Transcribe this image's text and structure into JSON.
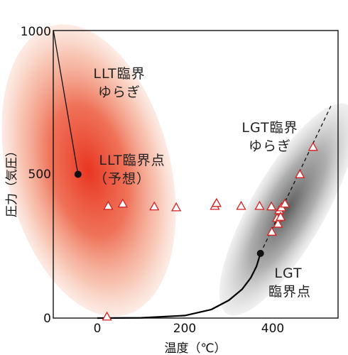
{
  "chart_data": {
    "type": "scatter",
    "title": "",
    "xlabel": "温度（℃）",
    "ylabel": "圧力（気圧）",
    "xlim": [
      -100,
      550
    ],
    "ylim": [
      0,
      1000
    ],
    "x_ticks": [
      0,
      200,
      400
    ],
    "x_tick_labels": [
      "0",
      "200",
      "400"
    ],
    "y_ticks": [
      0,
      500,
      1000
    ],
    "y_tick_labels": [
      "0",
      "500",
      "1000"
    ],
    "grid": false,
    "legend": "none",
    "colors": {
      "llt_fluctuation": "#e8311c",
      "lgt_fluctuation": "#6f6f6f",
      "triangle_marker": "#d42020",
      "curve": "#000000"
    },
    "triangles": [
      {
        "x": 22,
        "y": 5
      },
      {
        "x": 25,
        "y": 390
      },
      {
        "x": 58,
        "y": 398
      },
      {
        "x": 130,
        "y": 388
      },
      {
        "x": 180,
        "y": 385
      },
      {
        "x": 268,
        "y": 390
      },
      {
        "x": 272,
        "y": 400
      },
      {
        "x": 328,
        "y": 390
      },
      {
        "x": 370,
        "y": 390
      },
      {
        "x": 397,
        "y": 388
      },
      {
        "x": 410,
        "y": 348
      },
      {
        "x": 412,
        "y": 328
      },
      {
        "x": 415,
        "y": 375
      },
      {
        "x": 418,
        "y": 352
      },
      {
        "x": 420,
        "y": 385
      },
      {
        "x": 428,
        "y": 398
      },
      {
        "x": 398,
        "y": 300
      },
      {
        "x": 462,
        "y": 500
      },
      {
        "x": 492,
        "y": 595
      }
    ],
    "llt_critical_point": {
      "x": -44,
      "y": 500
    },
    "lgt_critical_point": {
      "x": 372,
      "y": 225
    },
    "lgt_dashed_line": [
      {
        "x": 372,
        "y": 225
      },
      {
        "x": 535,
        "y": 745
      }
    ],
    "lgt_curve": [
      {
        "x": 0,
        "y": 0
      },
      {
        "x": 100,
        "y": 1
      },
      {
        "x": 200,
        "y": 9
      },
      {
        "x": 260,
        "y": 30
      },
      {
        "x": 300,
        "y": 62
      },
      {
        "x": 330,
        "y": 100
      },
      {
        "x": 350,
        "y": 140
      },
      {
        "x": 363,
        "y": 180
      },
      {
        "x": 372,
        "y": 225
      }
    ],
    "llt_pointer_line": [
      {
        "x": -100,
        "y": 1000
      },
      {
        "x": -44,
        "y": 500
      }
    ],
    "annotations": {
      "llt_fluctuation": [
        "LLT臨界",
        "ゆらぎ"
      ],
      "llt_point": [
        "LLT臨界点",
        "（予想）"
      ],
      "lgt_fluctuation": [
        "LGT臨界",
        "ゆらぎ"
      ],
      "lgt_point": [
        "LGT",
        "臨界点"
      ]
    }
  }
}
